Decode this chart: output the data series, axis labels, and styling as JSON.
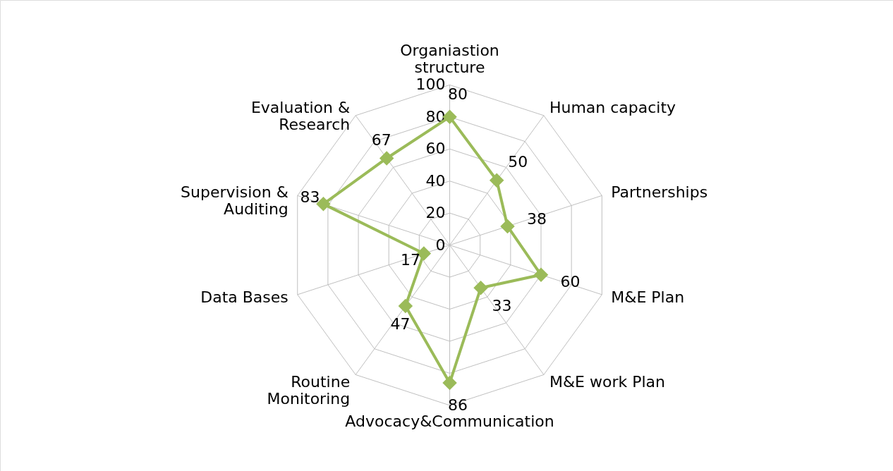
{
  "chart_data": {
    "type": "radar",
    "categories": [
      "Organiastion structure",
      "Human capacity",
      "Partnerships",
      "M&E Plan",
      "M&E work Plan",
      "Advocacy&Communication",
      "Routine Monitoring",
      "Data Bases",
      "Supervision & Auditing",
      "Evaluation & Research"
    ],
    "series": [
      {
        "color": "#9bbb59",
        "values": [
          80,
          50,
          38,
          60,
          33,
          86,
          47,
          17,
          83,
          67
        ]
      }
    ],
    "ylim": [
      0,
      100
    ],
    "yticks": [
      0,
      20,
      40,
      60,
      80,
      100
    ],
    "grid": true,
    "data_labels": true,
    "marker": "diamond"
  }
}
